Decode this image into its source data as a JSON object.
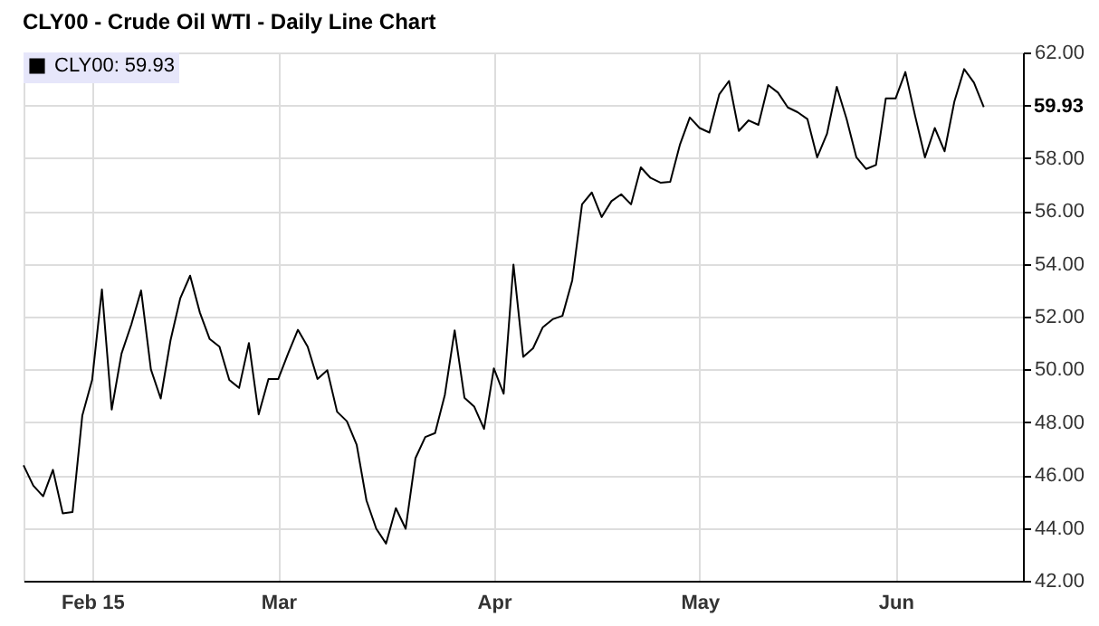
{
  "chart_data": {
    "type": "line",
    "title": "CLY00 - Crude Oil WTI - Daily Line Chart",
    "categories": [
      null,
      null,
      null,
      null,
      null,
      null,
      null,
      "Feb 15",
      null,
      null,
      null,
      null,
      null,
      null,
      null,
      null,
      null,
      null,
      null,
      null,
      null,
      null,
      null,
      null,
      null,
      null,
      "Mar",
      null,
      null,
      null,
      null,
      null,
      null,
      null,
      null,
      null,
      null,
      null,
      null,
      null,
      null,
      null,
      null,
      null,
      null,
      null,
      null,
      null,
      "Apr",
      null,
      null,
      null,
      null,
      null,
      null,
      null,
      null,
      null,
      null,
      null,
      null,
      null,
      null,
      null,
      null,
      null,
      null,
      null,
      null,
      "May",
      null,
      null,
      null,
      null,
      null,
      null,
      null,
      null,
      null,
      null,
      null,
      null,
      null,
      null,
      null,
      null,
      null,
      null,
      null,
      "Jun",
      null,
      null,
      null,
      null,
      null,
      null,
      null,
      null,
      null,
      null,
      null,
      null,
      null
    ],
    "series": [
      {
        "name": "CLY00: 59.93",
        "color": "#000000",
        "values": [
          46.37,
          45.6,
          45.2,
          46.2,
          44.55,
          44.6,
          48.26,
          49.6,
          53.03,
          48.48,
          50.6,
          51.7,
          52.99,
          50.0,
          48.9,
          51.1,
          52.7,
          53.55,
          52.15,
          51.15,
          50.86,
          49.6,
          49.3,
          51.0,
          48.3,
          49.64,
          49.64,
          50.6,
          51.5,
          50.86,
          49.64,
          49.97,
          48.4,
          48.04,
          47.15,
          45.04,
          43.97,
          43.41,
          44.75,
          43.97,
          46.64,
          47.44,
          47.59,
          49.04,
          51.48,
          48.93,
          48.59,
          47.75,
          50.04,
          49.08,
          53.97,
          50.48,
          50.8,
          51.6,
          51.9,
          52.03,
          53.37,
          56.25,
          56.7,
          55.77,
          56.37,
          56.63,
          56.25,
          57.65,
          57.25,
          57.07,
          57.1,
          58.52,
          59.54,
          59.14,
          58.97,
          60.41,
          60.92,
          59.03,
          59.43,
          59.26,
          60.77,
          60.48,
          59.92,
          59.74,
          59.48,
          58.03,
          58.92,
          60.7,
          59.48,
          58.03,
          57.59,
          57.74,
          60.26,
          60.26,
          61.26,
          59.59,
          58.03,
          59.14,
          58.26,
          60.14,
          61.37,
          60.86,
          59.93,
          null,
          null,
          null,
          null
        ]
      }
    ],
    "ylim": [
      42,
      62
    ],
    "yticks": [
      {
        "value": 42,
        "label": "42.00"
      },
      {
        "value": 44,
        "label": "44.00"
      },
      {
        "value": 46,
        "label": "46.00"
      },
      {
        "value": 48,
        "label": "48.00"
      },
      {
        "value": 50,
        "label": "50.00"
      },
      {
        "value": 52,
        "label": "52.00"
      },
      {
        "value": 54,
        "label": "54.00"
      },
      {
        "value": 56,
        "label": "56.00"
      },
      {
        "value": 58,
        "label": "58.00"
      },
      {
        "value": 60,
        "label": null
      },
      {
        "value": 62,
        "label": "62.00"
      }
    ],
    "annotations": [
      "59.93"
    ],
    "grid": true,
    "legend": "top left",
    "marker": "none",
    "line_style": "solid"
  }
}
